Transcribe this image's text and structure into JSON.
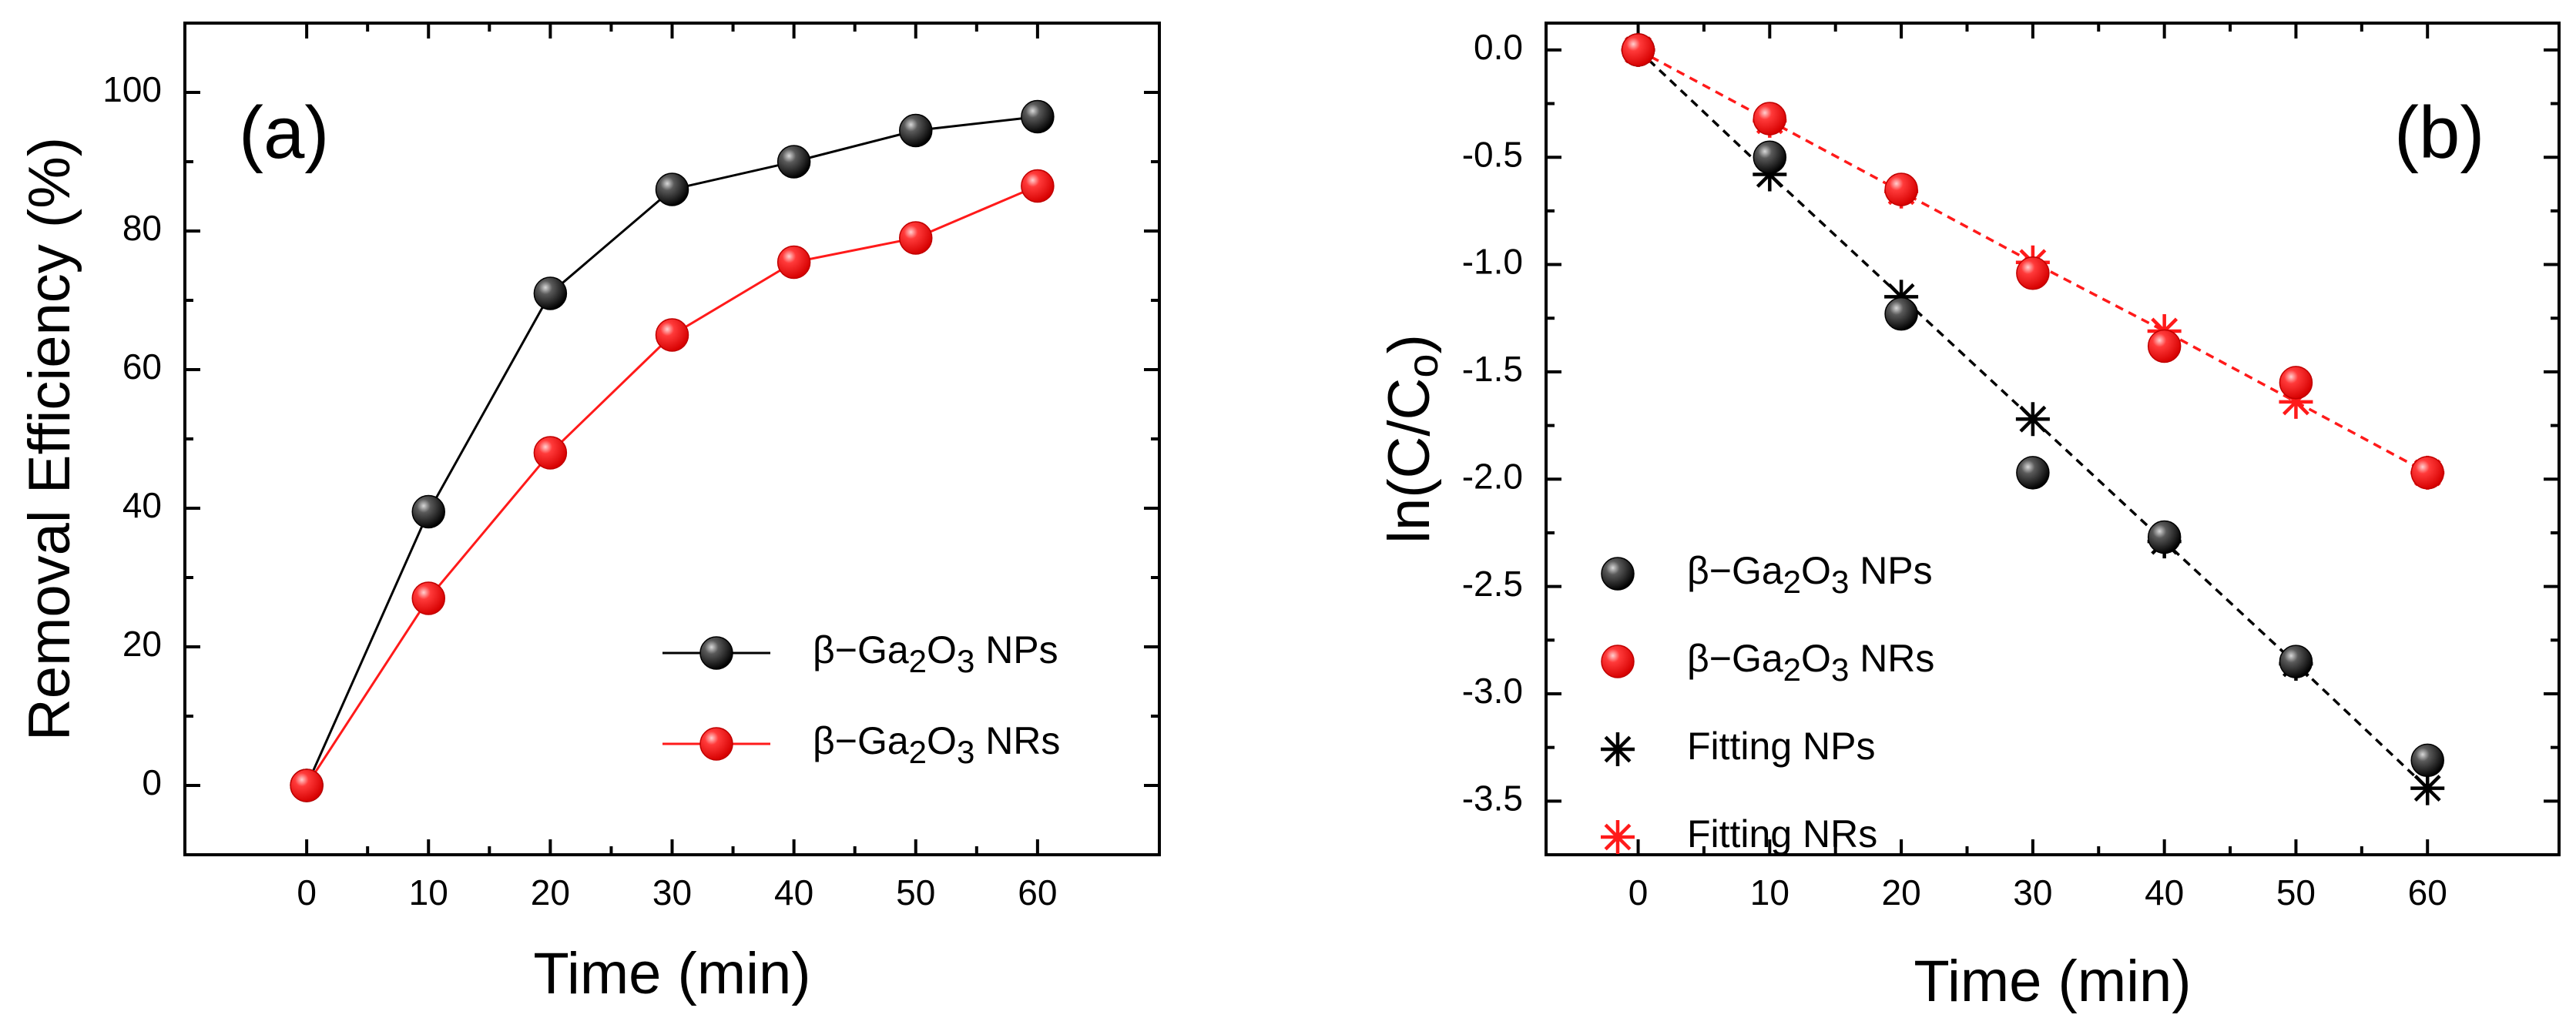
{
  "colors": {
    "black_series": "#000000",
    "red_series": "#ff1a1a"
  },
  "chart_data": [
    {
      "type": "line",
      "panel_label": "(a)",
      "xlabel": "Time (min)",
      "ylabel": "Removal Efficiency (%)",
      "xlim": [
        -10,
        70
      ],
      "ylim": [
        -10,
        110
      ],
      "xticks": [
        0,
        10,
        20,
        30,
        40,
        50,
        60
      ],
      "yticks": [
        0,
        20,
        40,
        60,
        80,
        100
      ],
      "x": [
        0,
        10,
        20,
        30,
        40,
        50,
        60
      ],
      "series": [
        {
          "name": "β−Ga2O3 NPs",
          "name_prefix": "β−Ga",
          "sub1": "2",
          "mid": "O",
          "sub2": "3",
          "name_suffix": " NPs",
          "color": "#000000",
          "marker": "sphere",
          "line": "solid",
          "values": [
            0,
            39.5,
            71,
            86,
            90,
            94.5,
            96.5
          ]
        },
        {
          "name": "β−Ga2O3 NRs",
          "name_prefix": "β−Ga",
          "sub1": "2",
          "mid": "O",
          "sub2": "3",
          "name_suffix": " NRs",
          "color": "#ff1a1a",
          "marker": "sphere",
          "line": "solid",
          "values": [
            0,
            27,
            48,
            65,
            75.5,
            79,
            86.5
          ]
        }
      ],
      "legend": "lower-right"
    },
    {
      "type": "line",
      "panel_label": "(b)",
      "xlabel": "Time (min)",
      "ylabel": "ln(C/C",
      "ylabel_sub": "o",
      "ylabel_suffix": ")",
      "xlim": [
        -7,
        70
      ],
      "ylim": [
        -3.75,
        0.125
      ],
      "xticks": [
        0,
        10,
        20,
        30,
        40,
        50,
        60
      ],
      "yticks": [
        0.0,
        -0.5,
        -1.0,
        -1.5,
        -2.0,
        -2.5,
        -3.0,
        -3.5
      ],
      "ytick_labels": [
        "0.0",
        "-0.5",
        "-1.0",
        "-1.5",
        "-2.0",
        "-2.5",
        "-3.0",
        "-3.5"
      ],
      "x": [
        0,
        10,
        20,
        30,
        40,
        50,
        60
      ],
      "series": [
        {
          "name": "β−Ga2O3 NPs",
          "name_prefix": "β−Ga",
          "sub1": "2",
          "mid": "O",
          "sub2": "3",
          "name_suffix": " NPs",
          "color": "#000000",
          "marker": "sphere",
          "line": "none",
          "values": [
            0,
            -0.5,
            -1.23,
            -1.97,
            -2.27,
            -2.85,
            -3.31
          ]
        },
        {
          "name": "β−Ga2O3 NRs",
          "name_prefix": "β−Ga",
          "sub1": "2",
          "mid": "O",
          "sub2": "3",
          "name_suffix": " NRs",
          "color": "#ff1a1a",
          "marker": "sphere",
          "line": "none",
          "values": [
            0,
            -0.32,
            -0.65,
            -1.04,
            -1.38,
            -1.55,
            -1.97
          ]
        },
        {
          "name": "Fitting NPs",
          "color": "#000000",
          "marker": "star",
          "line": "dashed",
          "values": [
            0,
            -0.58,
            -1.15,
            -1.72,
            -2.29,
            -2.86,
            -3.44
          ]
        },
        {
          "name": "Fitting NRs",
          "color": "#ff1a1a",
          "marker": "star",
          "line": "dashed",
          "values": [
            0,
            -0.33,
            -0.66,
            -0.99,
            -1.31,
            -1.64,
            -1.97
          ]
        }
      ],
      "legend": "lower-left"
    }
  ]
}
